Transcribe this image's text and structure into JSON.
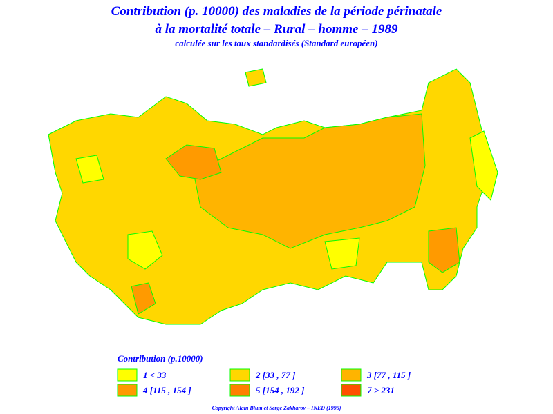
{
  "header": {
    "title_lines": [
      "Contribution (p. 10000) des maladies de la période périnatale",
      "à la mortalité totale  –  Rural  –  homme  –  1989"
    ],
    "subtitle": "calculée sur les taux standardisés (Standard européen)"
  },
  "legend": {
    "title": "Contribution  (p.10000)",
    "items": [
      {
        "label": "1  <  33",
        "color": "#ffff00"
      },
      {
        "label": "2  [33  ,  77 ]",
        "color": "#ffd700"
      },
      {
        "label": "3  [77  ,  115 ]",
        "color": "#ffb400"
      },
      {
        "label": "4  [115  ,  154 ]",
        "color": "#ff9a00"
      },
      {
        "label": "5  [154  ,  192 ]",
        "color": "#ff7f00"
      },
      {
        "label": "7  >  231",
        "color": "#ff5000"
      }
    ]
  },
  "footer": {
    "copyright": "Copyright Alain Blum et Serge Zakharov  –  INED (1995)"
  }
}
